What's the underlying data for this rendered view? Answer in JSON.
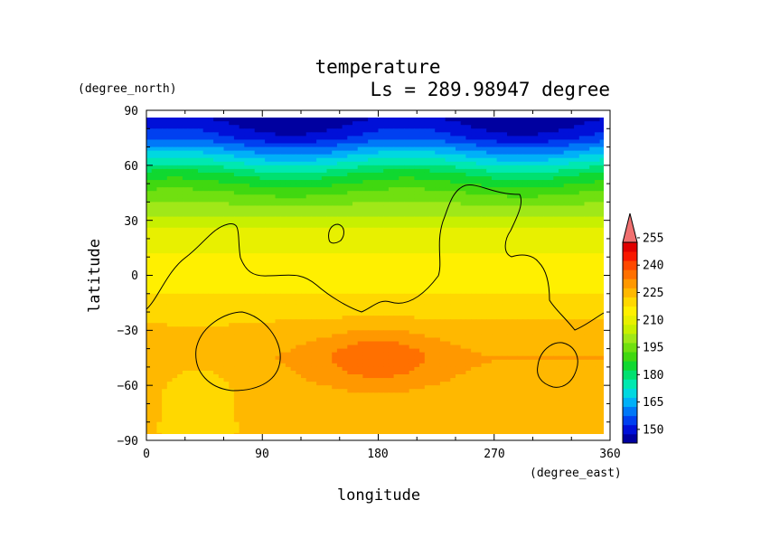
{
  "chart_data": {
    "type": "heatmap",
    "title": "temperature",
    "subtitle": "Ls = 289.98947 degree",
    "xlabel": "longitude",
    "ylabel": "latitude",
    "xunit": "(degree_east)",
    "yunit": "(degree_north)",
    "xlim": [
      0,
      360
    ],
    "ylim": [
      -90,
      90
    ],
    "xticks": [
      "0",
      "90",
      "180",
      "270",
      "360"
    ],
    "yticks": [
      "90",
      "60",
      "30",
      "0",
      "−30",
      "−60",
      "−90"
    ],
    "colorbar": {
      "levels": [
        145,
        150,
        155,
        160,
        165,
        170,
        175,
        180,
        185,
        190,
        195,
        200,
        205,
        210,
        215,
        220,
        225,
        230,
        235,
        240,
        245,
        250,
        255,
        260
      ],
      "labels": [
        "150",
        "165",
        "180",
        "195",
        "210",
        "225",
        "240",
        "255"
      ],
      "colors": [
        "#0000a0",
        "#0010d8",
        "#0040f0",
        "#0078f8",
        "#00b0f8",
        "#00d8e0",
        "#00e8b0",
        "#00e070",
        "#10d830",
        "#40d810",
        "#70e010",
        "#a0e818",
        "#c8f000",
        "#e8f000",
        "#fff000",
        "#ffd800",
        "#ffb800",
        "#ff9800",
        "#ff7000",
        "#ff4800",
        "#f81800",
        "#e00000",
        "#f07070"
      ]
    },
    "zonal_mean_temperature": {
      "latitude": [
        85,
        75,
        65,
        55,
        45,
        35,
        25,
        15,
        5,
        -5,
        -15,
        -25,
        -35,
        -45,
        -55,
        -65,
        -75,
        -85
      ],
      "temperature": [
        148,
        155,
        170,
        185,
        195,
        203,
        210,
        214,
        217,
        219,
        221,
        225,
        228,
        230,
        229,
        228,
        227,
        226
      ]
    },
    "grid": false,
    "legend": "colorbar right"
  }
}
